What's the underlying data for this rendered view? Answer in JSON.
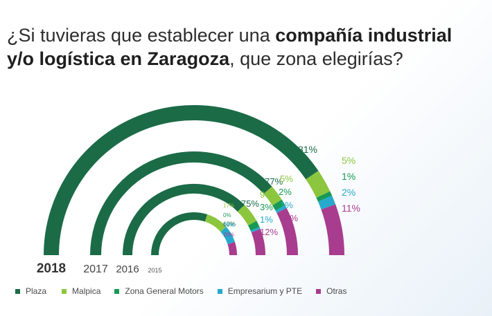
{
  "title": {
    "part1": "¿Si tuvieras que establecer una ",
    "bold1": "compañía industrial",
    "bold2": "y/o logística en Zaragoza",
    "part2": ", que zona elegirías?"
  },
  "chart_data": {
    "type": "semicircle-donut",
    "title": "¿Si tuvieras que establecer una compañía industrial y/o logística en Zaragoza, que zona elegirías?",
    "categories": [
      "Plaza",
      "Malpica",
      "Zona General Motors",
      "Empresarium y PTE",
      "Otras"
    ],
    "colors": [
      "#1b6b47",
      "#8cc63e",
      "#169a54",
      "#27a9cd",
      "#a83c8e"
    ],
    "series": [
      {
        "name": "2018",
        "values": [
          81,
          5,
          1,
          2,
          11
        ],
        "labels": [
          "81%",
          "5%",
          "1%",
          "2%",
          "11%"
        ]
      },
      {
        "name": "2017",
        "values": [
          77,
          5,
          2,
          1,
          15
        ],
        "labels": [
          "77%",
          "5%",
          "2%",
          "1%",
          "15%"
        ]
      },
      {
        "name": "2016",
        "values": [
          75,
          9,
          3,
          1,
          12
        ],
        "labels": [
          "75%",
          "9%",
          "3%",
          "1%",
          "12%"
        ]
      },
      {
        "name": "2015",
        "values": [
          60,
          17,
          0,
          13,
          10
        ],
        "labels": [
          "60%",
          "17%",
          "0%",
          "13%",
          "10%"
        ]
      }
    ]
  }
}
